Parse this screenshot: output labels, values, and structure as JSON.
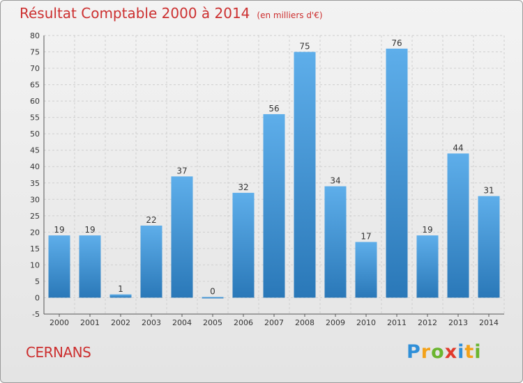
{
  "header": {
    "title": "Résultat Comptable 2000 à 2014",
    "subtitle": "(en milliers d'€)"
  },
  "footer": {
    "town": "CERNANS",
    "brand": "Proxiti",
    "brand_letters": [
      {
        "ch": "P",
        "color": "#2f8fd8"
      },
      {
        "ch": "r",
        "color": "#f3a21a"
      },
      {
        "ch": "o",
        "color": "#6bb530"
      },
      {
        "ch": "x",
        "color": "#e13a2c"
      },
      {
        "ch": "i",
        "color": "#2f8fd8"
      },
      {
        "ch": "t",
        "color": "#f3a21a"
      },
      {
        "ch": "i",
        "color": "#6bb530"
      }
    ]
  },
  "colors": {
    "bar_top": "#5eaeea",
    "bar_bottom": "#2a78b8",
    "grid": "#cfcfcf",
    "axis_text": "#333333",
    "title": "#cc2f2f"
  },
  "chart_data": {
    "type": "bar",
    "title": "Résultat Comptable 2000 à 2014",
    "subtitle": "(en milliers d'€)",
    "categories": [
      "2000",
      "2001",
      "2002",
      "2003",
      "2004",
      "2005",
      "2006",
      "2007",
      "2008",
      "2009",
      "2010",
      "2011",
      "2012",
      "2013",
      "2014"
    ],
    "values": [
      19,
      19,
      1,
      22,
      37,
      0,
      32,
      56,
      75,
      34,
      17,
      76,
      19,
      44,
      31
    ],
    "ylim": [
      -5,
      80
    ],
    "yticks": [
      -5,
      0,
      5,
      10,
      15,
      20,
      25,
      30,
      35,
      40,
      45,
      50,
      55,
      60,
      65,
      70,
      75,
      80
    ],
    "grid": true,
    "data_labels": true
  }
}
